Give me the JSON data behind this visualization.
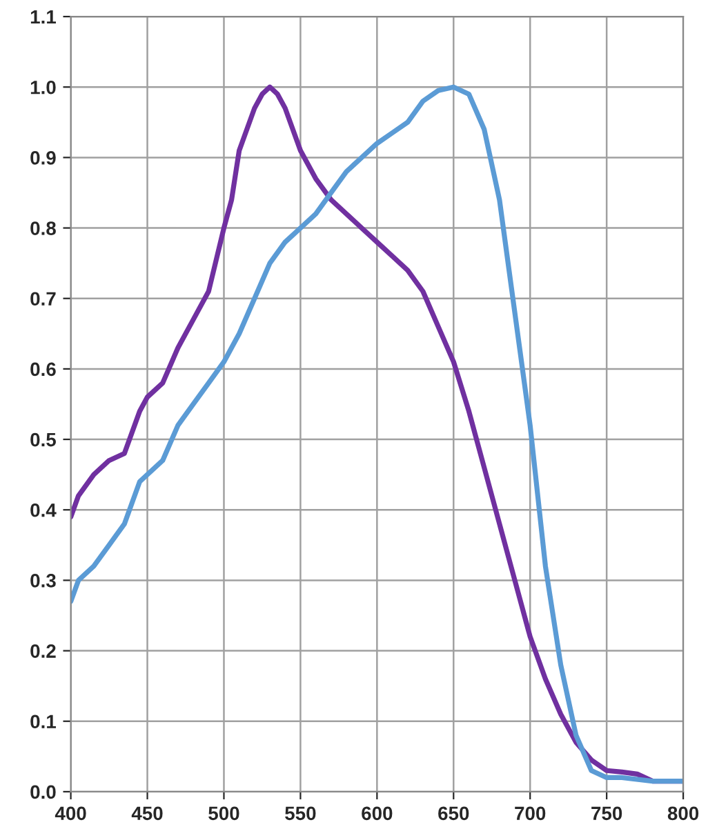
{
  "chart_data": {
    "type": "line",
    "xlim": [
      400,
      800
    ],
    "xticks": [
      400,
      450,
      500,
      550,
      600,
      650,
      700,
      750,
      800
    ],
    "ylim": [
      0,
      1.1
    ],
    "yticks": [
      {
        "value": 0,
        "label": "0.0"
      },
      {
        "value": 0.1,
        "label": "0.1"
      },
      {
        "value": 0.2,
        "label": "0.2"
      },
      {
        "value": 0.3,
        "label": "0.3"
      },
      {
        "value": 0.4,
        "label": "0.4"
      },
      {
        "value": 0.5,
        "label": "0.5"
      },
      {
        "value": 0.6,
        "label": "0.6"
      },
      {
        "value": 0.7,
        "label": "0.7"
      },
      {
        "value": 0.8,
        "label": "0.8"
      },
      {
        "value": 0.9,
        "label": "0.9"
      },
      {
        "value": 1.0,
        "label": "1.0"
      },
      {
        "value": 1.1,
        "label": "1.1"
      }
    ],
    "grid": true,
    "marker": "none",
    "line_style": "solid",
    "series": [
      {
        "color": "#7030a0",
        "x": [
          400,
          405,
          415,
          425,
          435,
          445,
          450,
          460,
          470,
          480,
          490,
          500,
          505,
          510,
          520,
          525,
          530,
          535,
          540,
          550,
          560,
          570,
          580,
          590,
          600,
          610,
          620,
          630,
          640,
          650,
          660,
          670,
          680,
          690,
          700,
          710,
          720,
          730,
          740,
          750,
          760,
          770,
          780,
          800
        ],
        "values": [
          0.39,
          0.42,
          0.45,
          0.47,
          0.48,
          0.54,
          0.56,
          0.58,
          0.63,
          0.67,
          0.71,
          0.8,
          0.84,
          0.91,
          0.97,
          0.99,
          1.0,
          0.99,
          0.97,
          0.91,
          0.87,
          0.84,
          0.82,
          0.8,
          0.78,
          0.76,
          0.74,
          0.71,
          0.66,
          0.61,
          0.54,
          0.46,
          0.38,
          0.3,
          0.22,
          0.16,
          0.11,
          0.07,
          0.045,
          0.03,
          0.028,
          0.025,
          0.015,
          0.015
        ]
      },
      {
        "color": "#5b9bd5",
        "x": [
          400,
          405,
          415,
          425,
          435,
          445,
          450,
          460,
          470,
          480,
          490,
          500,
          510,
          520,
          530,
          540,
          550,
          560,
          570,
          580,
          590,
          600,
          610,
          620,
          630,
          640,
          650,
          660,
          670,
          680,
          690,
          700,
          710,
          720,
          730,
          740,
          750,
          760,
          780,
          800
        ],
        "values": [
          0.27,
          0.3,
          0.32,
          0.35,
          0.38,
          0.44,
          0.45,
          0.47,
          0.52,
          0.55,
          0.58,
          0.61,
          0.65,
          0.7,
          0.75,
          0.78,
          0.8,
          0.82,
          0.85,
          0.88,
          0.9,
          0.92,
          0.935,
          0.95,
          0.98,
          0.995,
          1.0,
          0.99,
          0.94,
          0.84,
          0.68,
          0.52,
          0.32,
          0.18,
          0.08,
          0.03,
          0.02,
          0.02,
          0.015,
          0.015
        ]
      }
    ]
  }
}
